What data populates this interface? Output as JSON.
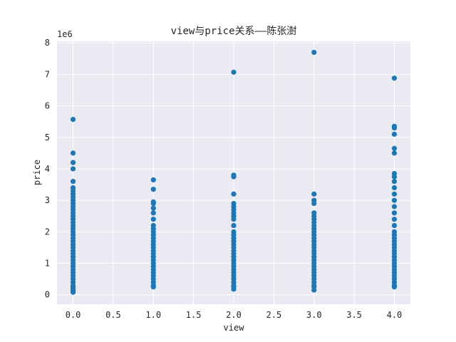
{
  "chart_data": {
    "type": "scatter",
    "title": "view与price关系——陈张澍",
    "xlabel": "view",
    "ylabel": "price",
    "offset_label": "1e6",
    "xlim": [
      -0.2,
      4.2
    ],
    "ylim": [
      -0.3,
      8.05
    ],
    "x_ticks": [
      0.0,
      0.5,
      1.0,
      1.5,
      2.0,
      2.5,
      3.0,
      3.5,
      4.0
    ],
    "x_tick_labels": [
      "0.0",
      "0.5",
      "1.0",
      "1.5",
      "2.0",
      "2.5",
      "3.0",
      "3.5",
      "4.0"
    ],
    "y_ticks": [
      0,
      1,
      2,
      3,
      4,
      5,
      6,
      7,
      8
    ],
    "y_tick_labels": [
      "0",
      "1",
      "2",
      "3",
      "4",
      "5",
      "6",
      "7",
      "8"
    ],
    "grid": true,
    "background_color": "#EAEAF2",
    "point_color": "#1F77B4",
    "series": [
      {
        "values": [
          [
            0,
            0.08
          ],
          [
            0,
            0.1
          ],
          [
            0,
            0.15
          ],
          [
            0,
            0.2
          ],
          [
            0,
            0.25
          ],
          [
            0,
            0.3
          ],
          [
            0,
            0.4
          ],
          [
            0,
            0.5
          ],
          [
            0,
            0.6
          ],
          [
            0,
            0.7
          ],
          [
            0,
            0.8
          ],
          [
            0,
            0.9
          ],
          [
            0,
            1.0
          ],
          [
            0,
            1.1
          ],
          [
            0,
            1.2
          ],
          [
            0,
            1.3
          ],
          [
            0,
            1.4
          ],
          [
            0,
            1.5
          ],
          [
            0,
            1.6
          ],
          [
            0,
            1.7
          ],
          [
            0,
            1.8
          ],
          [
            0,
            1.9
          ],
          [
            0,
            2.0
          ],
          [
            0,
            2.1
          ],
          [
            0,
            2.2
          ],
          [
            0,
            2.3
          ],
          [
            0,
            2.4
          ],
          [
            0,
            2.5
          ],
          [
            0,
            2.6
          ],
          [
            0,
            2.7
          ],
          [
            0,
            2.8
          ],
          [
            0,
            2.9
          ],
          [
            0,
            3.0
          ],
          [
            0,
            3.1
          ],
          [
            0,
            3.2
          ],
          [
            0,
            3.3
          ],
          [
            0,
            3.4
          ],
          [
            0,
            3.6
          ],
          [
            0,
            4.0
          ],
          [
            0,
            4.2
          ],
          [
            0,
            4.5
          ],
          [
            0,
            5.57
          ],
          [
            1,
            0.25
          ],
          [
            1,
            0.3
          ],
          [
            1,
            0.4
          ],
          [
            1,
            0.5
          ],
          [
            1,
            0.6
          ],
          [
            1,
            0.7
          ],
          [
            1,
            0.8
          ],
          [
            1,
            0.9
          ],
          [
            1,
            1.0
          ],
          [
            1,
            1.1
          ],
          [
            1,
            1.2
          ],
          [
            1,
            1.3
          ],
          [
            1,
            1.4
          ],
          [
            1,
            1.5
          ],
          [
            1,
            1.6
          ],
          [
            1,
            1.7
          ],
          [
            1,
            1.8
          ],
          [
            1,
            1.9
          ],
          [
            1,
            2.0
          ],
          [
            1,
            2.1
          ],
          [
            1,
            2.2
          ],
          [
            1,
            2.4
          ],
          [
            1,
            2.6
          ],
          [
            1,
            2.75
          ],
          [
            1,
            2.9
          ],
          [
            1,
            2.95
          ],
          [
            1,
            3.35
          ],
          [
            1,
            3.65
          ],
          [
            2,
            0.18
          ],
          [
            2,
            0.25
          ],
          [
            2,
            0.3
          ],
          [
            2,
            0.4
          ],
          [
            2,
            0.5
          ],
          [
            2,
            0.6
          ],
          [
            2,
            0.7
          ],
          [
            2,
            0.8
          ],
          [
            2,
            0.9
          ],
          [
            2,
            1.0
          ],
          [
            2,
            1.1
          ],
          [
            2,
            1.2
          ],
          [
            2,
            1.3
          ],
          [
            2,
            1.4
          ],
          [
            2,
            1.5
          ],
          [
            2,
            1.6
          ],
          [
            2,
            1.7
          ],
          [
            2,
            1.8
          ],
          [
            2,
            1.9
          ],
          [
            2,
            2.0
          ],
          [
            2,
            2.2
          ],
          [
            2,
            2.4
          ],
          [
            2,
            2.5
          ],
          [
            2,
            2.6
          ],
          [
            2,
            2.7
          ],
          [
            2,
            2.8
          ],
          [
            2,
            2.9
          ],
          [
            2,
            3.2
          ],
          [
            2,
            3.75
          ],
          [
            2,
            3.8
          ],
          [
            2,
            7.07
          ],
          [
            3,
            0.15
          ],
          [
            3,
            0.25
          ],
          [
            3,
            0.3
          ],
          [
            3,
            0.4
          ],
          [
            3,
            0.5
          ],
          [
            3,
            0.6
          ],
          [
            3,
            0.7
          ],
          [
            3,
            0.8
          ],
          [
            3,
            0.9
          ],
          [
            3,
            1.0
          ],
          [
            3,
            1.1
          ],
          [
            3,
            1.2
          ],
          [
            3,
            1.3
          ],
          [
            3,
            1.4
          ],
          [
            3,
            1.5
          ],
          [
            3,
            1.6
          ],
          [
            3,
            1.7
          ],
          [
            3,
            1.8
          ],
          [
            3,
            1.9
          ],
          [
            3,
            2.0
          ],
          [
            3,
            2.1
          ],
          [
            3,
            2.2
          ],
          [
            3,
            2.3
          ],
          [
            3,
            2.4
          ],
          [
            3,
            2.5
          ],
          [
            3,
            2.6
          ],
          [
            3,
            2.9
          ],
          [
            3,
            3.0
          ],
          [
            3,
            3.2
          ],
          [
            3,
            7.7
          ],
          [
            4,
            0.25
          ],
          [
            4,
            0.3
          ],
          [
            4,
            0.4
          ],
          [
            4,
            0.5
          ],
          [
            4,
            0.6
          ],
          [
            4,
            0.7
          ],
          [
            4,
            0.8
          ],
          [
            4,
            0.9
          ],
          [
            4,
            1.0
          ],
          [
            4,
            1.1
          ],
          [
            4,
            1.2
          ],
          [
            4,
            1.3
          ],
          [
            4,
            1.4
          ],
          [
            4,
            1.5
          ],
          [
            4,
            1.6
          ],
          [
            4,
            1.7
          ],
          [
            4,
            1.8
          ],
          [
            4,
            1.9
          ],
          [
            4,
            2.0
          ],
          [
            4,
            2.2
          ],
          [
            4,
            2.4
          ],
          [
            4,
            2.6
          ],
          [
            4,
            2.8
          ],
          [
            4,
            3.0
          ],
          [
            4,
            3.2
          ],
          [
            4,
            3.4
          ],
          [
            4,
            3.6
          ],
          [
            4,
            3.75
          ],
          [
            4,
            3.85
          ],
          [
            4,
            4.5
          ],
          [
            4,
            4.65
          ],
          [
            4,
            5.1
          ],
          [
            4,
            5.3
          ],
          [
            4,
            5.35
          ],
          [
            4,
            6.88
          ]
        ]
      }
    ]
  }
}
